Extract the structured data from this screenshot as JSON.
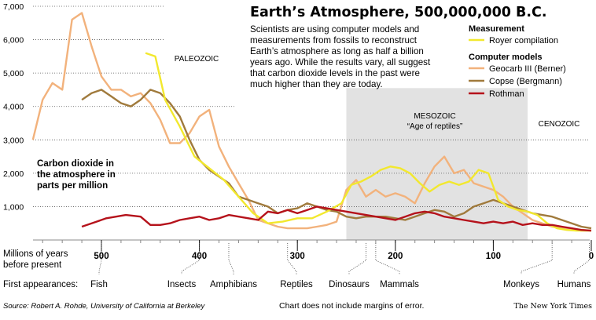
{
  "title": "Earth’s Atmosphere, 500,000,000 B.C.",
  "description_lines": [
    "Scientists are using computer models and",
    "measurements from fossils to reconstruct",
    "Earth’s atmosphere as long as half a billion",
    "years ago. While the results vary, all suggest",
    "that carbon dioxide levels in the past were",
    "much higher than they are today."
  ],
  "legend": {
    "measurement_heading": "Measurement",
    "models_heading": "Computer models"
  },
  "eras": [
    {
      "name": "PALEOZOIC",
      "sub": ""
    },
    {
      "name": "MESOZOIC",
      "sub": "“Age of reptiles”"
    },
    {
      "name": "CENOZOIC",
      "sub": ""
    }
  ],
  "ylabel_lines": [
    "Carbon dioxide in",
    "the atmosphere in",
    "parts per million"
  ],
  "xlabel_lines": [
    "Millions of years",
    "before present"
  ],
  "first_appearances_label": "First appearances:",
  "first_appearances": [
    {
      "name": "Fish",
      "mya": 500
    },
    {
      "name": "Insects",
      "mya": 400
    },
    {
      "name": "Amphibians",
      "mya": 370
    },
    {
      "name": "Reptiles",
      "mya": 310
    },
    {
      "name": "Dinosaurs",
      "mya": 230
    },
    {
      "name": "Mammals",
      "mya": 220
    },
    {
      "name": "Monkeys",
      "mya": 40
    },
    {
      "name": "Humans",
      "mya": 2
    }
  ],
  "source": "Source: Robert A. Rohde, University of California at Berkeley",
  "note": "Chart does not include margins of error.",
  "credit": "The New York Times",
  "colors": {
    "royer": "#f2e82e",
    "geocarb": "#f2b27c",
    "copse": "#a07a3c",
    "rothman": "#b5121b",
    "mesozoic_band": "#e2e2e2"
  },
  "chart_data": {
    "type": "line",
    "xlabel": "Millions of years before present",
    "ylabel": "Carbon dioxide in the atmosphere in parts per million",
    "xlim": [
      570,
      0
    ],
    "ylim": [
      0,
      7000
    ],
    "x_ticks": [
      500,
      400,
      300,
      200,
      100,
      0
    ],
    "y_ticks": [
      1000,
      2000,
      3000,
      4000,
      5000,
      6000,
      7000
    ],
    "y_tick_labels": [
      "1,000",
      "2,000",
      "3,000",
      "4,000",
      "5,000",
      "6,000",
      "7,000"
    ],
    "eras": [
      {
        "name": "PALEOZOIC",
        "x": [
          570,
          250
        ]
      },
      {
        "name": "MESOZOIC",
        "x": [
          250,
          65
        ],
        "shaded": true
      },
      {
        "name": "CENOZOIC",
        "x": [
          65,
          0
        ]
      }
    ],
    "series": [
      {
        "name": "Royer compilation",
        "group": "Measurement",
        "x": [
          455,
          445,
          435,
          420,
          405,
          390,
          375,
          360,
          345,
          330,
          315,
          300,
          285,
          270,
          255,
          245,
          235,
          225,
          215,
          205,
          195,
          185,
          175,
          165,
          155,
          145,
          135,
          125,
          115,
          105,
          95,
          85,
          75,
          65,
          55,
          45,
          35,
          25,
          15,
          5,
          0
        ],
        "y": [
          5600,
          5500,
          4200,
          3400,
          2500,
          2150,
          1800,
          1300,
          800,
          500,
          550,
          650,
          650,
          850,
          1100,
          1650,
          1750,
          1900,
          2100,
          2200,
          2150,
          2000,
          1700,
          1450,
          1650,
          1750,
          1650,
          1750,
          2100,
          2000,
          1200,
          1000,
          900,
          850,
          750,
          500,
          350,
          300,
          280,
          280,
          280
        ]
      },
      {
        "name": "Geocarb III (Berner)",
        "group": "Computer models",
        "x": [
          570,
          560,
          550,
          540,
          530,
          520,
          510,
          500,
          490,
          480,
          470,
          460,
          450,
          440,
          430,
          420,
          410,
          400,
          390,
          380,
          370,
          360,
          350,
          340,
          330,
          320,
          310,
          300,
          290,
          280,
          270,
          260,
          250,
          240,
          230,
          220,
          210,
          200,
          190,
          180,
          170,
          160,
          150,
          140,
          130,
          120,
          110,
          100,
          90,
          80,
          70,
          60,
          50,
          40,
          30,
          20,
          10,
          0
        ],
        "y": [
          3000,
          4200,
          4700,
          4500,
          6600,
          6800,
          5800,
          4900,
          4500,
          4500,
          4300,
          4400,
          4100,
          3600,
          2900,
          2900,
          3200,
          3700,
          3900,
          2800,
          2200,
          1700,
          1200,
          600,
          500,
          400,
          350,
          350,
          350,
          400,
          450,
          550,
          1500,
          1800,
          1300,
          1500,
          1300,
          1400,
          1300,
          1100,
          1700,
          2200,
          2500,
          2000,
          2100,
          1700,
          1600,
          1500,
          1300,
          1000,
          800,
          600,
          500,
          400,
          350,
          300,
          300,
          280
        ]
      },
      {
        "name": "Copse (Bergmann)",
        "group": "Computer models",
        "x": [
          520,
          510,
          500,
          490,
          480,
          470,
          460,
          450,
          440,
          430,
          420,
          410,
          400,
          390,
          380,
          370,
          360,
          350,
          340,
          330,
          320,
          310,
          300,
          290,
          280,
          270,
          260,
          250,
          240,
          230,
          220,
          210,
          200,
          190,
          180,
          170,
          160,
          150,
          140,
          130,
          120,
          110,
          100,
          90,
          80,
          70,
          60,
          50,
          40,
          30,
          20,
          10,
          0
        ],
        "y": [
          4200,
          4400,
          4500,
          4300,
          4100,
          4000,
          4200,
          4500,
          4400,
          4100,
          3700,
          3000,
          2400,
          2100,
          1900,
          1700,
          1300,
          1200,
          1100,
          1000,
          800,
          900,
          950,
          1100,
          1000,
          900,
          850,
          700,
          650,
          700,
          700,
          700,
          650,
          600,
          700,
          800,
          900,
          850,
          700,
          800,
          1000,
          1100,
          1200,
          1100,
          1000,
          900,
          800,
          750,
          700,
          600,
          500,
          400,
          350
        ]
      },
      {
        "name": "Rothman",
        "group": "Computer models",
        "x": [
          520,
          505,
          495,
          485,
          475,
          460,
          450,
          440,
          430,
          420,
          410,
          400,
          390,
          380,
          370,
          360,
          350,
          340,
          330,
          320,
          310,
          300,
          290,
          280,
          270,
          260,
          250,
          240,
          230,
          220,
          210,
          200,
          190,
          180,
          170,
          160,
          150,
          140,
          130,
          120,
          110,
          100,
          90,
          80,
          70,
          60,
          50,
          40,
          30,
          20,
          10,
          0
        ],
        "y": [
          400,
          550,
          650,
          700,
          750,
          700,
          450,
          450,
          500,
          600,
          650,
          700,
          600,
          650,
          750,
          700,
          650,
          600,
          850,
          800,
          900,
          800,
          900,
          1000,
          950,
          900,
          850,
          800,
          750,
          700,
          650,
          600,
          700,
          800,
          850,
          800,
          700,
          650,
          600,
          550,
          500,
          550,
          500,
          550,
          450,
          500,
          450,
          450,
          400,
          350,
          300,
          280
        ]
      }
    ]
  }
}
